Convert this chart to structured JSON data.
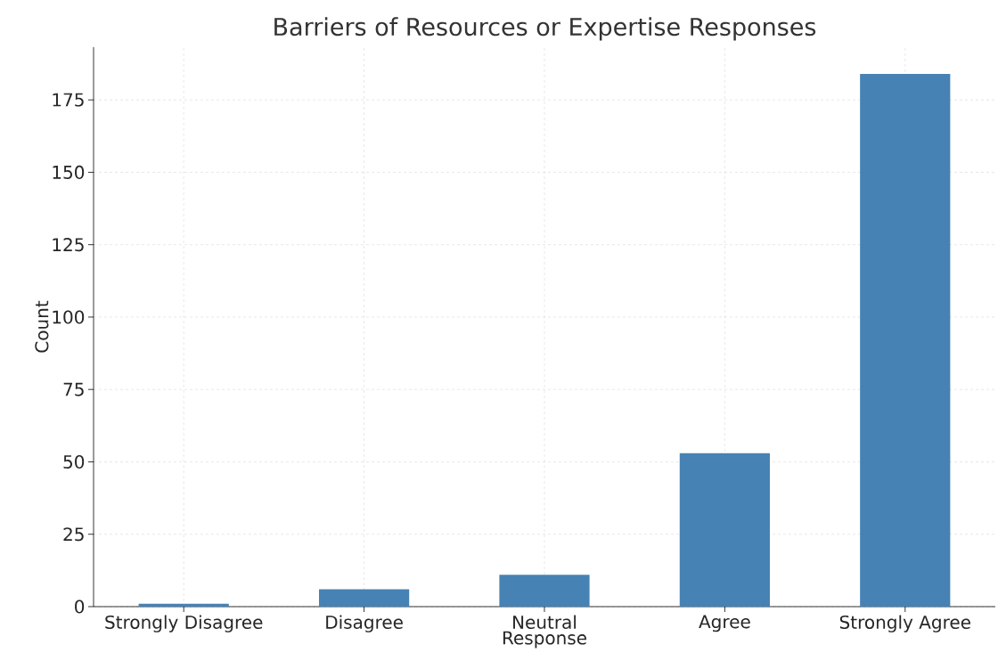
{
  "chart_data": {
    "type": "bar",
    "title": "Barriers of Resources or Expertise Responses",
    "xlabel": "Response",
    "ylabel": "Count",
    "categories": [
      "Strongly Disagree",
      "Disagree",
      "Neutral",
      "Agree",
      "Strongly Agree"
    ],
    "values": [
      1,
      6,
      11,
      53,
      184
    ],
    "color": "#4682b4",
    "ylim": [
      0,
      193.2
    ],
    "yticks": [
      0,
      25,
      50,
      75,
      100,
      125,
      150,
      175
    ],
    "grid": true
  }
}
